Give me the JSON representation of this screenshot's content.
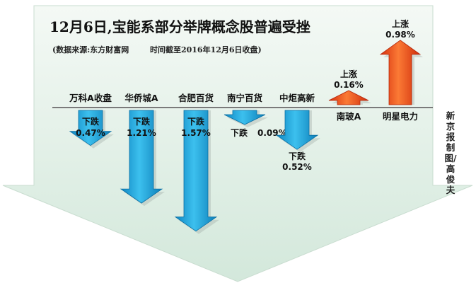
{
  "header": {
    "title": "12月6日,宝能系部分举牌概念股普遍受挫",
    "source_text": "(数据来源:东方财富网",
    "cutoff_text": "时间截至2016年12月6日收盘)"
  },
  "credit": "新京报制图/高俊夫",
  "colors": {
    "down_arrow": "#1aa3de",
    "up_arrow": "#ef4a1c",
    "background": "#e5f1e8"
  },
  "chart_data": {
    "type": "bar",
    "title": "12月6日,宝能系部分举牌概念股普遍受挫",
    "unit": "%",
    "bars": [
      {
        "name": "万科A收盘",
        "value": -0.47,
        "label_prefix": "下跌",
        "label_value": "0.47%"
      },
      {
        "name": "华侨城A",
        "value": -1.21,
        "label_prefix": "下跌",
        "label_value": "1.21%"
      },
      {
        "name": "合肥百货",
        "value": -1.57,
        "label_prefix": "下跌",
        "label_value": "1.57%"
      },
      {
        "name": "南宁百货",
        "value": -0.09,
        "label_prefix": "下跌",
        "label_value": "0.09%"
      },
      {
        "name": "中炬高新",
        "value": -0.52,
        "label_prefix": "下跌",
        "label_value": "0.52%"
      },
      {
        "name": "南玻A",
        "value": 0.16,
        "label_prefix": "上涨",
        "label_value": "0.16%"
      },
      {
        "name": "明星电力",
        "value": 0.98,
        "label_prefix": "上涨",
        "label_value": "0.98%"
      }
    ]
  }
}
